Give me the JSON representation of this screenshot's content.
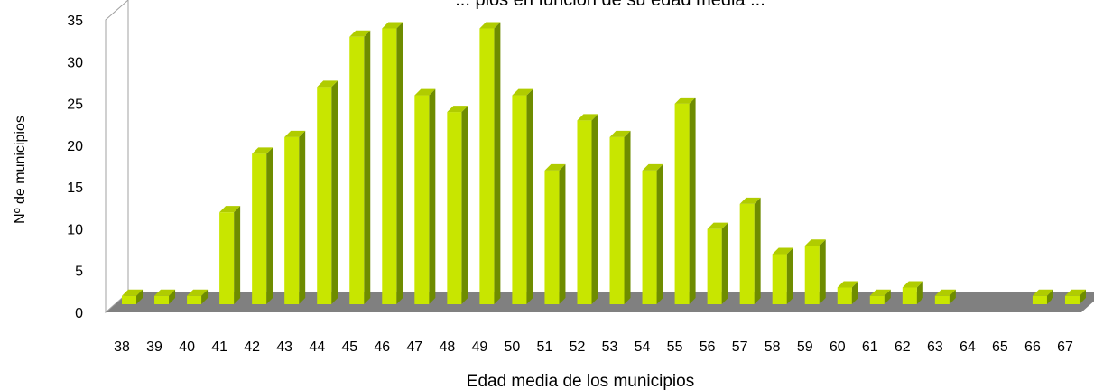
{
  "colors": {
    "bar_front": "#C8E600",
    "bar_side": "#6E8C00",
    "bar_top": "#B0CC00",
    "floor": "#808080",
    "wall_line": "#A0A0A0"
  },
  "chart_data": {
    "type": "bar",
    "title": "... pios en función de su edad media ...",
    "xlabel": "Edad media de los municipios",
    "ylabel": "Nº de municipios",
    "categories": [
      "38",
      "39",
      "40",
      "41",
      "42",
      "43",
      "44",
      "45",
      "46",
      "47",
      "48",
      "49",
      "50",
      "51",
      "52",
      "53",
      "54",
      "55",
      "56",
      "57",
      "58",
      "59",
      "60",
      "61",
      "62",
      "63",
      "64",
      "65",
      "66",
      "67"
    ],
    "values": [
      1,
      1,
      1,
      11,
      18,
      20,
      26,
      32,
      33,
      25,
      23,
      33,
      25,
      16,
      22,
      20,
      16,
      24,
      9,
      12,
      6,
      7,
      2,
      1,
      2,
      1,
      0,
      0,
      1,
      1
    ],
    "ylim": [
      0,
      35
    ],
    "yticks": [
      0,
      5,
      10,
      15,
      20,
      25,
      30,
      35
    ],
    "grid": false,
    "legend": "none"
  }
}
